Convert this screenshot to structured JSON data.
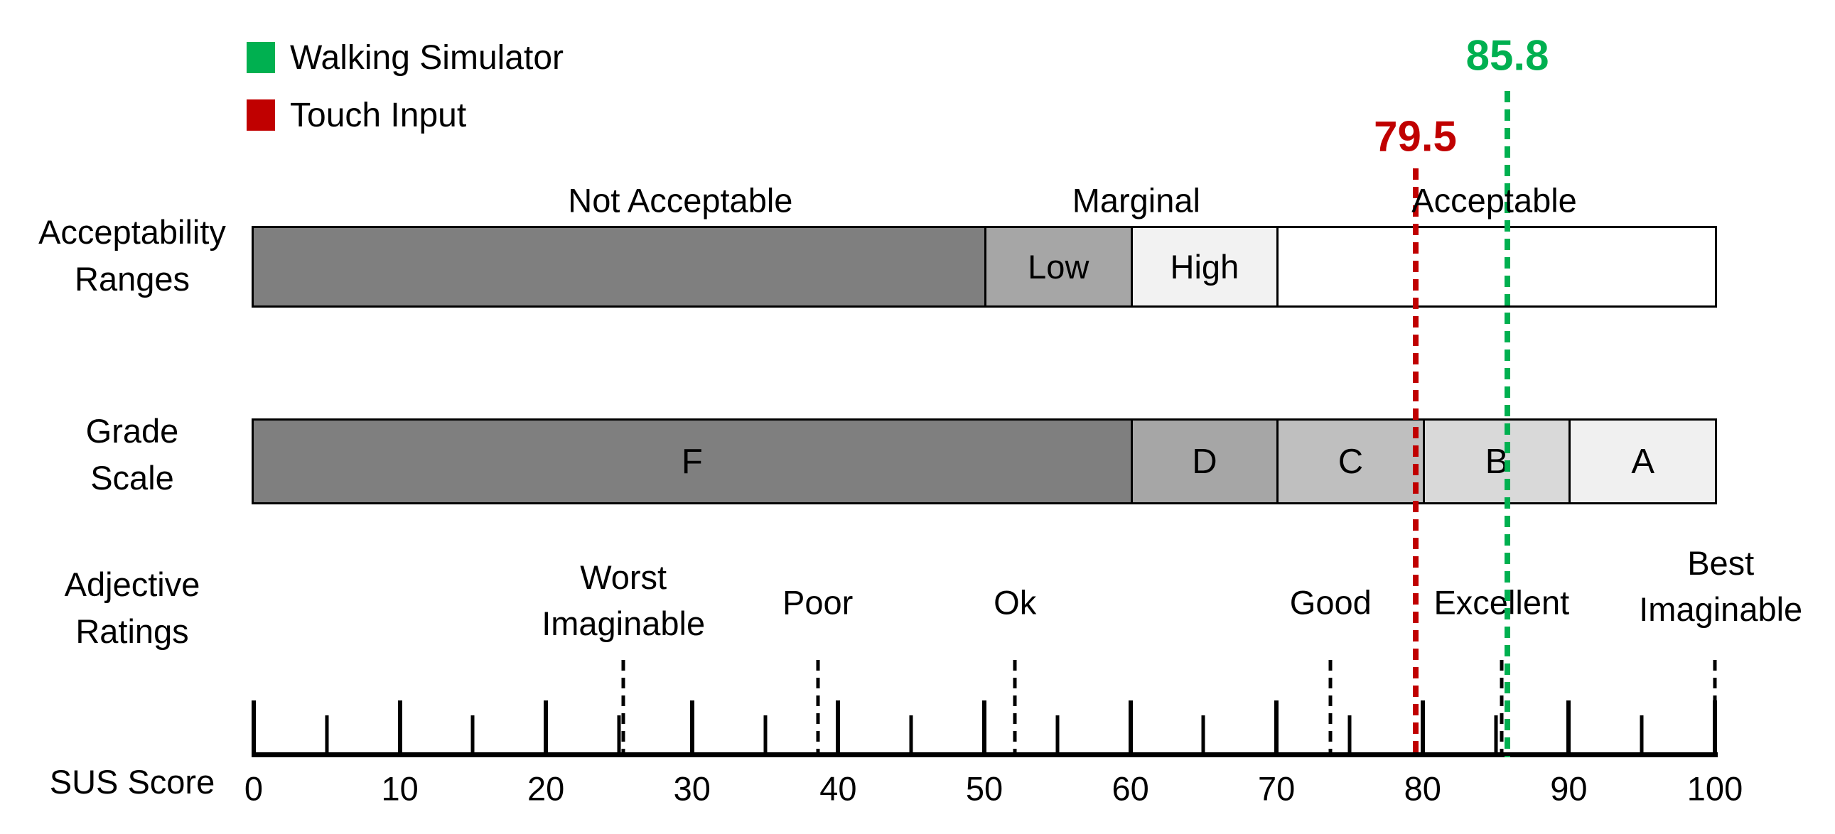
{
  "colors": {
    "green": "#00B050",
    "red": "#C00000",
    "gray_dark": "#7F7F7F",
    "gray_medium": "#A6A6A6",
    "gray_c": "#BFBFBF",
    "gray_b": "#D9D9D9",
    "gray_light": "#F0F0F0",
    "gray_high": "#F2F2F2",
    "white": "#FFFFFF",
    "black": "#000000"
  },
  "chart_data": {
    "type": "bar",
    "title": "",
    "legend": [
      {
        "label": "Walking Simulator",
        "color": "#00B050"
      },
      {
        "label": "Touch Input",
        "color": "#C00000"
      }
    ],
    "markers": [
      {
        "series": "Walking Simulator",
        "label": "85.8",
        "value": 85.8,
        "color": "#00B050"
      },
      {
        "series": "Touch Input",
        "label": "79.5",
        "value": 79.5,
        "color": "#C00000"
      }
    ],
    "rows": [
      {
        "name": "Acceptability Ranges",
        "label_lines": [
          "Acceptability",
          "Ranges"
        ],
        "top_labels": [
          {
            "text": "Not Acceptable",
            "center": 29.2
          },
          {
            "text": "Marginal",
            "center": 60.4
          },
          {
            "text": "Acceptable",
            "center": 84.9
          }
        ],
        "segments": [
          {
            "label": "",
            "region": "Not Acceptable",
            "from": 0,
            "to": 50,
            "color": "#7F7F7F"
          },
          {
            "label": "Low",
            "region": "Marginal",
            "from": 50,
            "to": 60,
            "color": "#A6A6A6"
          },
          {
            "label": "High",
            "region": "Marginal",
            "from": 60,
            "to": 70,
            "color": "#F2F2F2"
          },
          {
            "label": "",
            "region": "Acceptable",
            "from": 70,
            "to": 100,
            "color": "#FFFFFF"
          }
        ]
      },
      {
        "name": "Grade Scale",
        "label_lines": [
          "Grade",
          "Scale"
        ],
        "segments": [
          {
            "label": "F",
            "from": 0,
            "to": 60,
            "color": "#7F7F7F"
          },
          {
            "label": "D",
            "from": 60,
            "to": 70,
            "color": "#A6A6A6"
          },
          {
            "label": "C",
            "from": 70,
            "to": 80,
            "color": "#BFBFBF"
          },
          {
            "label": "B",
            "from": 80,
            "to": 90,
            "color": "#D9D9D9"
          },
          {
            "label": "A",
            "from": 90,
            "to": 100,
            "color": "#F0F0F0"
          }
        ]
      },
      {
        "name": "Adjective Ratings",
        "label_lines": [
          "Adjective",
          "Ratings"
        ],
        "points": [
          {
            "label_lines": [
              "Worst",
              "Imaginable"
            ],
            "score": 25.3
          },
          {
            "label_lines": [
              "Poor"
            ],
            "score": 38.6
          },
          {
            "label_lines": [
              "Ok"
            ],
            "score": 52.1
          },
          {
            "label_lines": [
              "Good"
            ],
            "score": 73.7
          },
          {
            "label_lines": [
              "Excellent"
            ],
            "score": 85.4
          },
          {
            "label_lines": [
              "Best",
              "Imaginable"
            ],
            "score": 100,
            "label_center": 100.4
          }
        ]
      }
    ],
    "x_axis": {
      "label": "SUS Score",
      "min": 0,
      "max": 100,
      "major_tick_step": 10,
      "minor_tick_step": 5,
      "tick_labels": [
        "0",
        "10",
        "20",
        "30",
        "40",
        "50",
        "60",
        "70",
        "80",
        "90",
        "100"
      ]
    }
  }
}
